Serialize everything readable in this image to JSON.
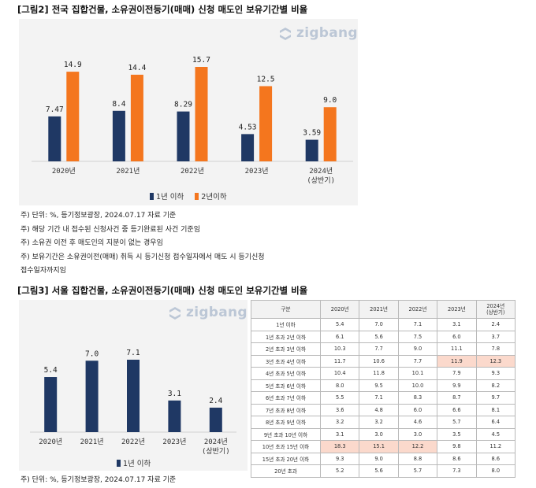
{
  "figure2": {
    "title_tag": "[그림2]",
    "title": "전국 집합건물, 소유권이전등기(매매) 신청 매도인 보유기간별 비율",
    "logo": "zigbang",
    "colors": {
      "series1": "#1f3864",
      "series2": "#f4761e",
      "panel": "#f3f3f3"
    },
    "chart_data": {
      "type": "bar",
      "categories": [
        "2020년",
        "2021년",
        "2022년",
        "2023년",
        "2024년\n(상반기)"
      ],
      "series": [
        {
          "name": "1년 이하",
          "values": [
            7.47,
            8.4,
            8.29,
            4.53,
            3.59
          ],
          "labels": [
            "7.47",
            "8.4",
            "8.29",
            "4.53",
            "3.59"
          ]
        },
        {
          "name": "2년이하",
          "values": [
            14.9,
            14.4,
            15.7,
            12.5,
            9.0
          ],
          "labels": [
            "14.9",
            "14.4",
            "15.7",
            "12.5",
            "9.0"
          ]
        }
      ],
      "legend": "bottom-center",
      "grid": false
    },
    "notes": [
      "주) 단위: %,  등기정보광장, 2024.07.17 자료 기준",
      "주)  해당 기간 내 접수된 신청사건 중 등기완료된 사건 기준임",
      "주)  소유권 이전 후 매도인의 지분이 없는 경우임",
      "주) 보유기간은 소유권이전(매매) 취득 시 등기신청 접수일자에서 매도 시 등기신청",
      "접수일자까지임"
    ]
  },
  "figure3": {
    "title_tag": "[그림3]",
    "title": "서울 집합건물, 소유권이전등기(매매) 신청 매도인 보유기간별 비율",
    "logo": "zigbang",
    "colors": {
      "series1": "#1f3864",
      "highlight": "#fbd9cc"
    },
    "chart_data": {
      "type": "bar",
      "categories": [
        "2020년",
        "2021년",
        "2022년",
        "2023년",
        "2024년\n(상반기)"
      ],
      "series": [
        {
          "name": "1년 이하",
          "values": [
            5.4,
            7.0,
            7.1,
            3.1,
            2.4
          ],
          "labels": [
            "5.4",
            "7.0",
            "7.1",
            "3.1",
            "2.4"
          ]
        }
      ],
      "legend": "bottom-center",
      "grid": false
    },
    "table": {
      "headers": [
        "구분",
        "2020년",
        "2021년",
        "2022년",
        "2023년",
        "2024년\n(상반기)"
      ],
      "rows": [
        {
          "label": "1년 이하",
          "cells": [
            "5.4",
            "7.0",
            "7.1",
            "3.1",
            "2.4"
          ],
          "hl": []
        },
        {
          "label": "1년 초과 2년 이하",
          "cells": [
            "6.1",
            "5.6",
            "7.5",
            "6.0",
            "3.7"
          ],
          "hl": []
        },
        {
          "label": "2년 초과 3년 이하",
          "cells": [
            "10.3",
            "7.7",
            "9.0",
            "11.1",
            "7.8"
          ],
          "hl": []
        },
        {
          "label": "3년 초과 4년 이하",
          "cells": [
            "11.7",
            "10.6",
            "7.7",
            "11.9",
            "12.3"
          ],
          "hl": [
            3,
            4
          ]
        },
        {
          "label": "4년 초과 5년 이하",
          "cells": [
            "10.4",
            "11.8",
            "10.1",
            "7.9",
            "9.3"
          ],
          "hl": []
        },
        {
          "label": "5년 초과 6년 이하",
          "cells": [
            "8.0",
            "9.5",
            "10.0",
            "9.9",
            "8.2"
          ],
          "hl": []
        },
        {
          "label": "6년 초과 7년 이하",
          "cells": [
            "5.5",
            "7.1",
            "8.3",
            "8.7",
            "9.7"
          ],
          "hl": []
        },
        {
          "label": "7년 초과 8년 이하",
          "cells": [
            "3.6",
            "4.8",
            "6.0",
            "6.6",
            "8.1"
          ],
          "hl": []
        },
        {
          "label": "8년 초과 9년 이하",
          "cells": [
            "3.2",
            "3.2",
            "4.6",
            "5.7",
            "6.4"
          ],
          "hl": []
        },
        {
          "label": "9년 초과 10년 이하",
          "cells": [
            "3.1",
            "3.0",
            "3.0",
            "3.5",
            "4.5"
          ],
          "hl": []
        },
        {
          "label": "10년 초과 15년 이하",
          "cells": [
            "18.3",
            "15.1",
            "12.2",
            "9.8",
            "11.2"
          ],
          "hl": [
            0,
            1,
            2
          ]
        },
        {
          "label": "15년 초과 20년 이하",
          "cells": [
            "9.3",
            "9.0",
            "8.8",
            "8.6",
            "8.6"
          ],
          "hl": []
        },
        {
          "label": "20년 초과",
          "cells": [
            "5.2",
            "5.6",
            "5.7",
            "7.3",
            "8.0"
          ],
          "hl": []
        }
      ]
    },
    "source": "주) 단위: %,  등기정보광장, 2024.07.17 자료 기준"
  }
}
